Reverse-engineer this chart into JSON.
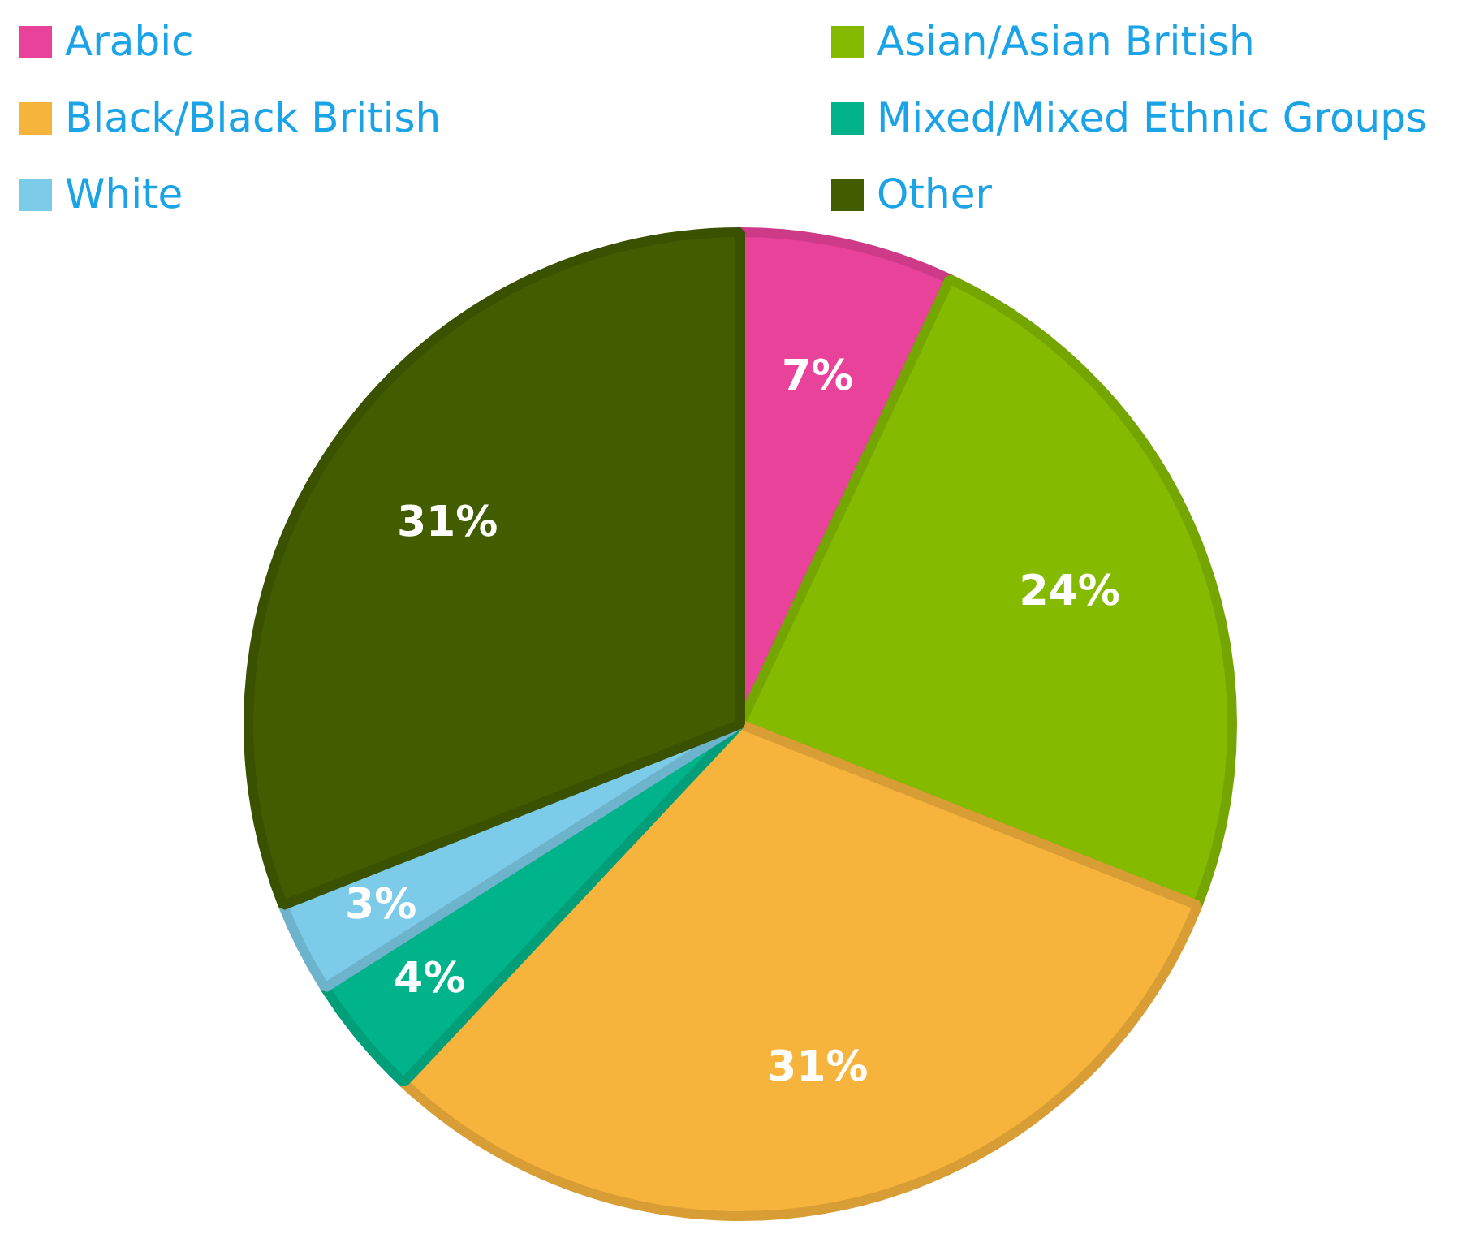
{
  "chart_data": {
    "type": "pie",
    "categories": [
      "Arabic",
      "Asian/Asian British",
      "Black/Black British",
      "Mixed/Mixed Ethnic Groups",
      "White",
      "Other"
    ],
    "values": [
      7,
      24,
      31,
      4,
      3,
      31
    ],
    "colors": [
      "#e8429a",
      "#84bb00",
      "#f6b43c",
      "#00b38a",
      "#7ccbe8",
      "#425c00"
    ],
    "value_labels": [
      "7%",
      "24%",
      "31%",
      "4%",
      "3%",
      "31%"
    ],
    "legend": "top"
  }
}
